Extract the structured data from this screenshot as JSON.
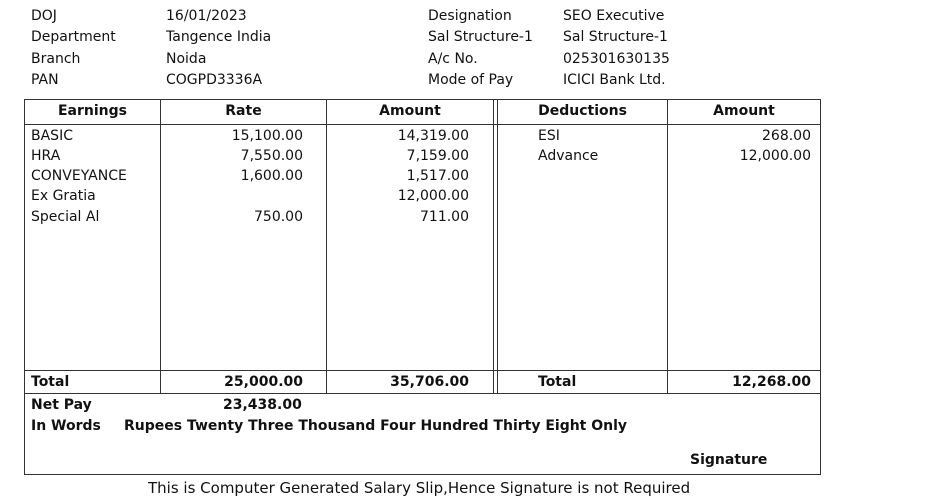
{
  "employee_info": [
    {
      "label": "DOJ",
      "value": "16/01/2023",
      "label2": "Designation",
      "value2": "SEO Executive"
    },
    {
      "label": "Department",
      "value": "Tangence India",
      "label2": "Sal Structure-1",
      "value2": "Sal Structure-1"
    },
    {
      "label": "Branch",
      "value": "Noida",
      "label2": "A/c No.",
      "value2": "025301630135"
    },
    {
      "label": "PAN",
      "value": "COGPD3336A",
      "label2": "Mode of Pay",
      "value2": "ICICI Bank Ltd."
    }
  ],
  "table": {
    "headers": {
      "earnings": "Earnings",
      "rate": "Rate",
      "amount": "Amount",
      "deductions": "Deductions",
      "deduction_amount": "Amount"
    },
    "earnings": [
      {
        "name": "BASIC",
        "rate": "15,100.00",
        "amount": "14,319.00"
      },
      {
        "name": "HRA",
        "rate": "7,550.00",
        "amount": "7,159.00"
      },
      {
        "name": "CONVEYANCE",
        "rate": "1,600.00",
        "amount": "1,517.00"
      },
      {
        "name": "Ex Gratia",
        "rate": "",
        "amount": "12,000.00"
      },
      {
        "name": "Special Al",
        "rate": "750.00",
        "amount": "711.00"
      }
    ],
    "deductions": [
      {
        "name": "ESI",
        "amount": "268.00"
      },
      {
        "name": "Advance",
        "amount": "12,000.00"
      }
    ],
    "totals": {
      "label": "Total",
      "rate": "25,000.00",
      "amount": "35,706.00",
      "deduction_label": "Total",
      "deduction_amount": "12,268.00"
    }
  },
  "net_pay": {
    "label": "Net Pay",
    "value": "23,438.00",
    "words_label": "In Words",
    "words_value": "Rupees Twenty Three Thousand Four Hundred Thirty Eight Only"
  },
  "signature_label": "Signature",
  "footer_note": "This is Computer Generated Salary Slip,Hence Signature is not Required"
}
